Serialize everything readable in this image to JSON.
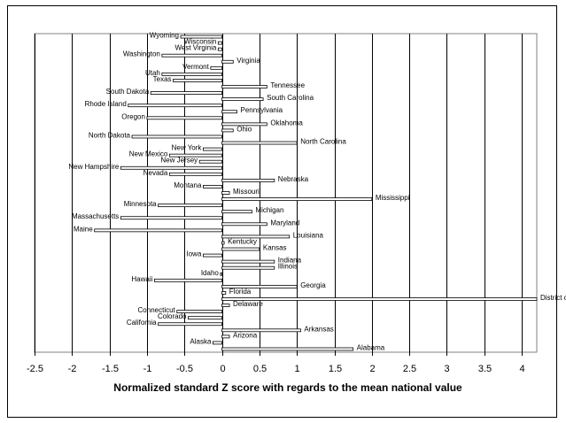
{
  "chart_data": {
    "type": "bar",
    "orientation": "horizontal",
    "xlabel": "Normalized standard Z score with regards to the mean national value",
    "xlim": [
      -2.5,
      4.2
    ],
    "xticks": [
      -2.5,
      -2,
      -1.5,
      -1,
      -0.5,
      0,
      0.5,
      1,
      1.5,
      2,
      2.5,
      3,
      3.5,
      4
    ],
    "grid": true,
    "legend": "none",
    "bar_color": "#ffffff",
    "bar_outline": "#000000",
    "categories": [
      "Wyoming",
      "Wisconsin",
      "West Virginia",
      "Washington",
      "Virginia",
      "Vermont",
      "Utah",
      "Texas",
      "Tennessee",
      "South Dakota",
      "South Carolina",
      "Rhode Island",
      "Pennsylvania",
      "Oregon",
      "Oklahoma",
      "Ohio",
      "North Dakota",
      "North Carolina",
      "New York",
      "New Mexico",
      "New Jersey",
      "New Hampshire",
      "Nevada",
      "Nebraska",
      "Montana",
      "Missouri",
      "Mississippi",
      "Minnesota",
      "Michigan",
      "Massachusetts",
      "Maryland",
      "Maine",
      "Louisiana",
      "Kentucky",
      "Kansas",
      "Iowa",
      "Indiana",
      "Illinois",
      "Idaho",
      "Hawaii",
      "Georgia",
      "Florida",
      "District of Columbia",
      "Delaware",
      "Connecticut",
      "Colorado",
      "California",
      "Arkansas",
      "Arizona",
      "Alaska",
      "Alabama"
    ],
    "values": [
      -0.55,
      -0.05,
      -0.05,
      -0.8,
      0.15,
      -0.15,
      -0.8,
      -0.65,
      0.6,
      -0.95,
      0.55,
      -1.25,
      0.2,
      -1.0,
      0.6,
      0.15,
      -1.2,
      1.0,
      -0.25,
      -0.7,
      -0.3,
      -1.35,
      -0.7,
      0.7,
      -0.25,
      0.1,
      2.0,
      -0.85,
      0.4,
      -1.35,
      0.6,
      -1.7,
      0.9,
      0.03,
      0.5,
      -0.25,
      0.7,
      0.7,
      -0.02,
      -0.9,
      1.0,
      0.05,
      4.2,
      0.1,
      -0.6,
      -0.45,
      -0.85,
      1.05,
      0.1,
      -0.12,
      1.75
    ]
  }
}
